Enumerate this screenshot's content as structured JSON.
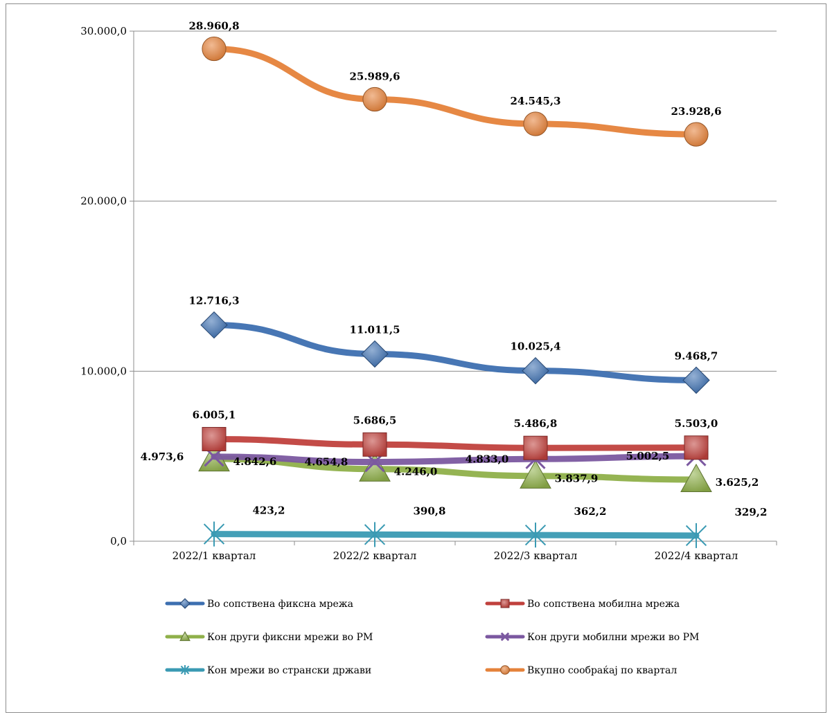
{
  "chart_data": {
    "type": "line",
    "categories": [
      "2022/1 квартал",
      "2022/2 квартал",
      "2022/3 квартал",
      "2022/4 квартал"
    ],
    "ylim": [
      0,
      30000
    ],
    "yticks": [
      0,
      10000,
      20000,
      30000
    ],
    "ytick_labels": [
      "0,0",
      "10.000,0",
      "20.000,0",
      "30.000,0"
    ],
    "grid": true,
    "legend_position": "bottom",
    "series": [
      {
        "name": "Во сопствена фиксна  мрежа",
        "marker": "diamond",
        "color": "#3d6fb0",
        "values": [
          12716.3,
          11011.5,
          10025.4,
          9468.7
        ],
        "labels": [
          "12.716,3",
          "11.011,5",
          "10.025,4",
          "9.468,7"
        ]
      },
      {
        "name": "Во сопствена мобилна мрежа",
        "marker": "square",
        "color": "#c0413d",
        "values": [
          6005.1,
          5686.5,
          5486.8,
          5503.0
        ],
        "labels": [
          "6.005,1",
          "5.686,5",
          "5.486,8",
          "5.503,0"
        ]
      },
      {
        "name": "Кон други фиксни мрежи во РМ",
        "marker": "triangle",
        "color": "#8fb04a",
        "values": [
          4842.6,
          4246.0,
          3837.9,
          3625.2
        ],
        "labels": [
          "4.842,6",
          "4.246,0",
          "3.837,9",
          "3.625,2"
        ]
      },
      {
        "name": "Кон други мобилни мрежи во РМ",
        "marker": "x",
        "color": "#7b58a0",
        "values": [
          4973.6,
          4654.8,
          4833.0,
          5002.5
        ],
        "labels": [
          "4.973,6",
          "4.654,8",
          "4.833,0",
          "5.002,5"
        ]
      },
      {
        "name": "Кон мрежи во странски држави",
        "marker": "star",
        "color": "#3a9ab3",
        "values": [
          423.2,
          390.8,
          362.2,
          329.2
        ],
        "labels": [
          "423,2",
          "390,8",
          "362,2",
          "329,2"
        ]
      },
      {
        "name": "Вкупно сообраќај по квартал",
        "marker": "circle",
        "color": "#e5823a",
        "values": [
          28960.8,
          25989.6,
          24545.3,
          23928.6
        ],
        "labels": [
          "28.960,8",
          "25.989,6",
          "24.545,3",
          "23.928,6"
        ]
      }
    ]
  }
}
